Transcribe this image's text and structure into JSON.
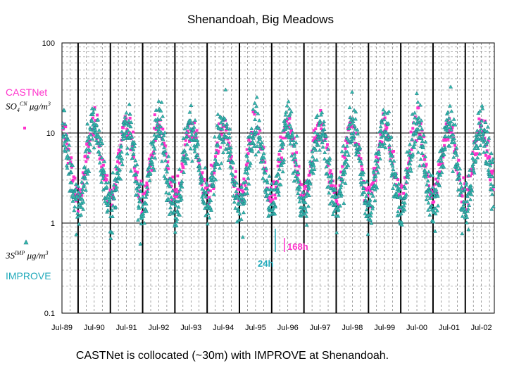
{
  "chart_data": {
    "type": "scatter",
    "title": "Shenandoah, Big Meadows",
    "caption": "CASTNet is collocated (~30m) with  IMPROVE at Shenandoah.",
    "yscale": "log",
    "ylim": [
      0.1,
      100
    ],
    "y_ticks": [
      "0.1",
      "1",
      "10",
      "100"
    ],
    "x_ticks": [
      "Jul-89",
      "Jul-90",
      "Jul-91",
      "Jul-92",
      "Jul-93",
      "Jul-94",
      "Jul-95",
      "Jul-96",
      "Jul-97",
      "Jul-98",
      "Jul-99",
      "Jul-00",
      "Jul-01",
      "Jul-02"
    ],
    "xlim": [
      "1989-07",
      "2002-11"
    ],
    "grid": true,
    "series": [
      {
        "name": "CASTNet",
        "sampling": "168h",
        "color": "#ff33cc",
        "marker": "square",
        "summer_peak_ug_m3": 12,
        "winter_trough_ug_m3": 2
      },
      {
        "name": "IMPROVE",
        "sampling": "24h",
        "color": "#22aabb",
        "marker": "triangle",
        "summer_peak_ug_m3": 12,
        "winter_trough_ug_m3": 1.5
      }
    ],
    "annotations": {
      "improve_interval": "24h",
      "castnet_interval": "168h"
    }
  },
  "labels": {
    "castnet": "CASTNet",
    "improve": "IMPROVE",
    "castnet_formula_base": "SO",
    "castnet_formula_sub": "4",
    "castnet_formula_sup": "CN",
    "improve_formula_base": "3S",
    "improve_formula_sup": "IMP",
    "unit_num": "μg",
    "unit_den": "m",
    "unit_den_sup": "3"
  },
  "colors": {
    "castnet": "#ff33cc",
    "improve": "#22aabb",
    "improve_fill": "#33bbaa"
  }
}
